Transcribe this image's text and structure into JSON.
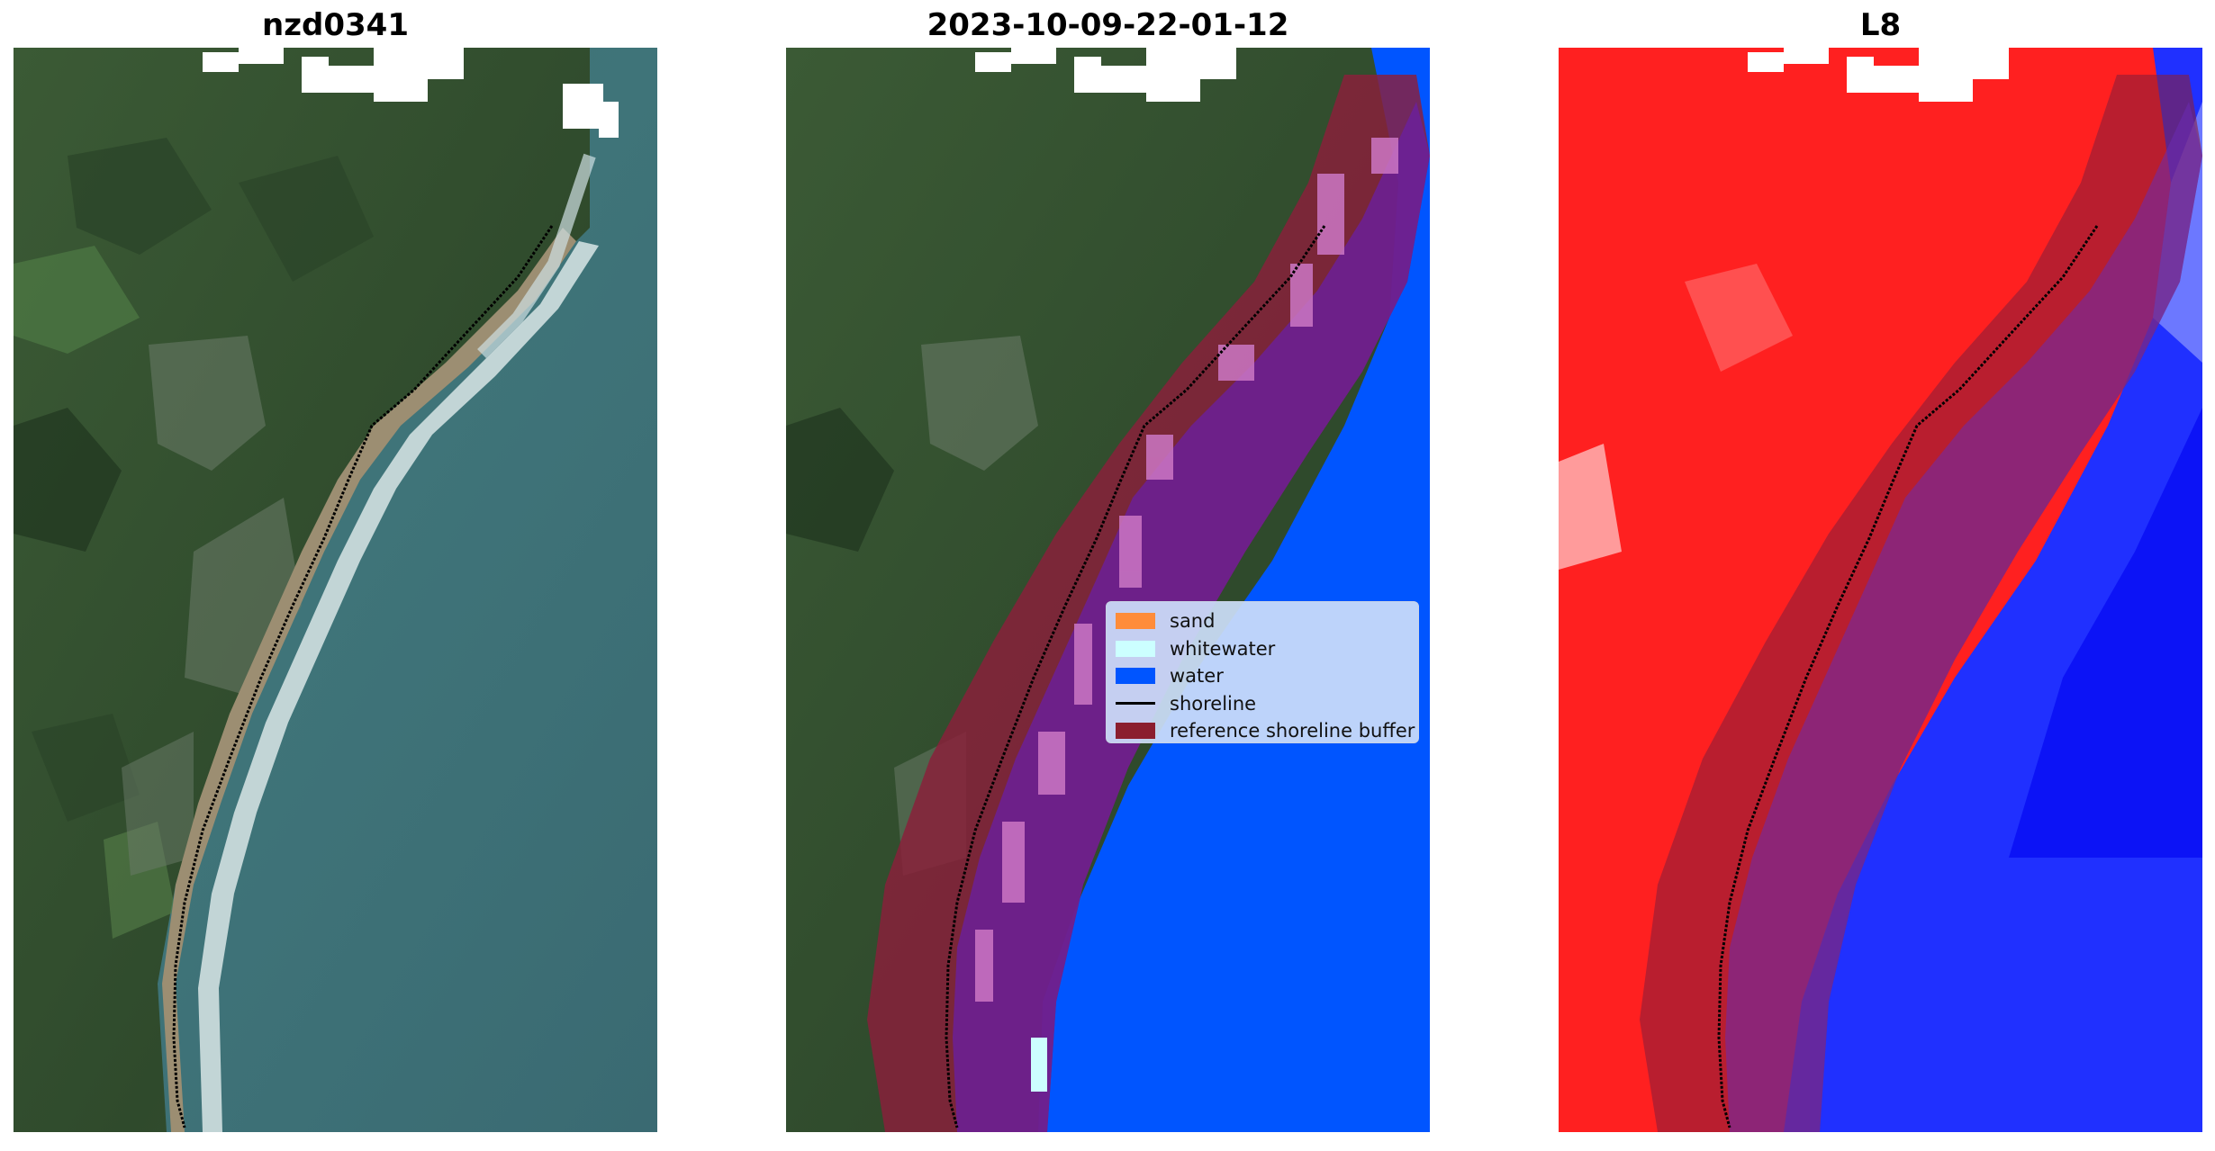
{
  "panels": [
    {
      "title": "nzd0341"
    },
    {
      "title": "2023-10-09-22-01-12"
    },
    {
      "title": "L8"
    }
  ],
  "legend": {
    "items": [
      {
        "label": "sand",
        "color": "#ff8c3a",
        "kind": "patch"
      },
      {
        "label": "whitewater",
        "color": "#ccffff",
        "kind": "patch"
      },
      {
        "label": "water",
        "color": "#0055ff",
        "kind": "patch"
      },
      {
        "label": "shoreline",
        "color": "#000000",
        "kind": "line"
      },
      {
        "label": "reference shoreline buffer",
        "color": "#8b1e2e",
        "kind": "patch"
      }
    ]
  }
}
